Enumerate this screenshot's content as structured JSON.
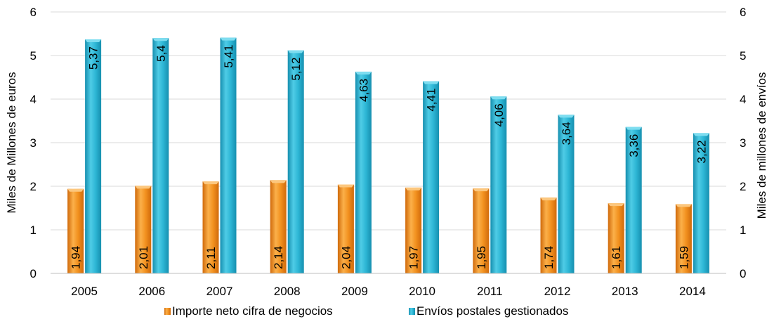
{
  "chart_data": {
    "type": "bar",
    "categories": [
      "2005",
      "2006",
      "2007",
      "2008",
      "2009",
      "2010",
      "2011",
      "2012",
      "2013",
      "2014"
    ],
    "series": [
      {
        "name": "Importe neto cifra de negocios",
        "axis": "left",
        "color": "#F28C1E",
        "values": [
          1.94,
          2.01,
          2.11,
          2.14,
          2.04,
          1.97,
          1.95,
          1.74,
          1.61,
          1.59
        ],
        "labels": [
          "1,94",
          "2,01",
          "2,11",
          "2,14",
          "2,04",
          "1,97",
          "1,95",
          "1,74",
          "1,61",
          "1,59"
        ]
      },
      {
        "name": "Envíos postales gestionados",
        "axis": "right",
        "color": "#2BB5D3",
        "values": [
          5.37,
          5.4,
          5.41,
          5.12,
          4.63,
          4.41,
          4.06,
          3.64,
          3.36,
          3.22
        ],
        "labels": [
          "5,37",
          "5,4",
          "5,41",
          "5,12",
          "4,63",
          "4,41",
          "4,06",
          "3,64",
          "3,36",
          "3,22"
        ]
      }
    ],
    "ylabel_left": "Miles de Millones  de euros",
    "ylabel_right": "Miles de millones de envíos",
    "ylim_left": [
      0,
      6
    ],
    "ylim_right": [
      0,
      6
    ],
    "yticks_left": [
      "0",
      "1",
      "2",
      "3",
      "4",
      "5",
      "6"
    ],
    "yticks_right": [
      "0",
      "1",
      "2",
      "3",
      "4",
      "5",
      "6"
    ],
    "grid": true,
    "legend_position": "bottom"
  }
}
